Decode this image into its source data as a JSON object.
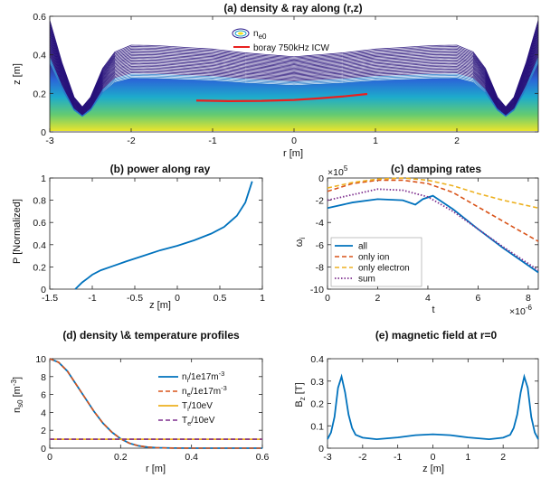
{
  "colors": {
    "blue": "#0072BD",
    "orange": "#D95319",
    "yellow": "#EDB120",
    "purple": "#7E2F8E",
    "ray": "#E8201F",
    "contour_low": "#27117a",
    "contour_high": "#f4ea20"
  },
  "chart_data": [
    {
      "type": "contour",
      "title": "(a) density & ray along (r,z)",
      "xlabel": "r [m]",
      "ylabel": "z [m]",
      "xlim": [
        -3,
        3
      ],
      "ylim": [
        0,
        0.6
      ],
      "xticks": [
        -3,
        -2,
        -1,
        0,
        1,
        2
      ],
      "yticks": [
        0,
        0.2,
        0.4,
        0.6
      ],
      "legend": [
        "n_e0",
        "boray 750kHz ICW"
      ],
      "legend_placement": "top-center",
      "envelope": {
        "x": [
          -3,
          -2.85,
          -2.7,
          -2.6,
          -2.5,
          -2.35,
          -2.2,
          -2,
          -1.7,
          -1.4,
          -1,
          -0.6,
          0,
          0.6,
          1,
          1.4,
          1.7,
          2,
          2.2,
          2.35,
          2.5,
          2.6,
          2.7,
          2.85,
          3
        ],
        "z": [
          0.58,
          0.36,
          0.18,
          0.13,
          0.18,
          0.33,
          0.415,
          0.45,
          0.448,
          0.44,
          0.43,
          0.41,
          0.39,
          0.41,
          0.43,
          0.44,
          0.448,
          0.45,
          0.415,
          0.33,
          0.18,
          0.13,
          0.18,
          0.36,
          0.58
        ]
      },
      "ray": {
        "r": [
          -1.2,
          -0.8,
          -0.4,
          0,
          0.3,
          0.6,
          0.9
        ],
        "z": [
          0.163,
          0.16,
          0.161,
          0.166,
          0.174,
          0.184,
          0.197
        ]
      }
    },
    {
      "type": "line",
      "title": "(b) power along ray",
      "xlabel": "z [m]",
      "ylabel": "P [Normalized]",
      "xlim": [
        -1.5,
        1
      ],
      "ylim": [
        0,
        1
      ],
      "xticks": [
        -1.5,
        -1,
        -0.5,
        0,
        0.5,
        1
      ],
      "yticks": [
        0,
        0.2,
        0.4,
        0.6,
        0.8,
        1
      ],
      "series": [
        {
          "x": [
            -1.2,
            -1.12,
            -1.05,
            -1.0,
            -0.9,
            -0.75,
            -0.6,
            -0.4,
            -0.2,
            0,
            0.2,
            0.4,
            0.55,
            0.7,
            0.8,
            0.88
          ],
          "y": [
            0,
            0.06,
            0.1,
            0.13,
            0.17,
            0.21,
            0.25,
            0.3,
            0.35,
            0.39,
            0.44,
            0.5,
            0.56,
            0.66,
            0.78,
            0.97
          ]
        }
      ]
    },
    {
      "type": "line",
      "title": "(c) damping rates",
      "xlabel": "t",
      "ylabel": "ω_i",
      "y_multiplier": "×10^5",
      "x_multiplier": "×10^-6",
      "xlim": [
        0,
        8.4
      ],
      "ylim": [
        -10,
        0
      ],
      "xticks": [
        0,
        2,
        4,
        6,
        8
      ],
      "yticks": [
        0,
        -2,
        -4,
        -6,
        -8,
        -10
      ],
      "legend_placement": "bottom-left",
      "series": [
        {
          "name": "all",
          "x": [
            0,
            1,
            2,
            3,
            3.5,
            3.8,
            4.2,
            5,
            6,
            7,
            8.4
          ],
          "y": [
            -2.7,
            -2.2,
            -1.9,
            -2.0,
            -2.4,
            -1.9,
            -1.6,
            -2.8,
            -4.6,
            -6.3,
            -8.5
          ]
        },
        {
          "name": "only ion",
          "x": [
            0,
            1,
            2,
            3,
            4,
            5,
            6,
            7,
            8.4
          ],
          "y": [
            -1.2,
            -0.5,
            -0.2,
            -0.2,
            -0.5,
            -1.3,
            -2.6,
            -3.9,
            -5.7
          ]
        },
        {
          "name": "only electron",
          "x": [
            0,
            1,
            2,
            3,
            4,
            5,
            6,
            7,
            8.4
          ],
          "y": [
            -0.9,
            -0.4,
            -0.1,
            0,
            -0.2,
            -0.7,
            -1.4,
            -2.0,
            -2.7
          ]
        },
        {
          "name": "sum",
          "x": [
            0,
            1,
            2,
            3,
            4,
            5,
            6,
            7,
            8.4
          ],
          "y": [
            -2.0,
            -1.5,
            -1.0,
            -1.1,
            -1.7,
            -3.0,
            -4.6,
            -6.2,
            -8.3
          ]
        }
      ]
    },
    {
      "type": "line",
      "title": "(d) density \\& temperature profiles",
      "xlabel": "r [m]",
      "ylabel": "n_s0 [m^-3]",
      "xlim": [
        0,
        0.6
      ],
      "ylim": [
        0,
        10
      ],
      "xticks": [
        0,
        0.2,
        0.4,
        0.6
      ],
      "yticks": [
        0,
        2,
        4,
        6,
        8,
        10
      ],
      "legend_placement": "right",
      "series": [
        {
          "name": "n_i/1e17m^-3",
          "x": [
            0,
            0.025,
            0.05,
            0.075,
            0.1,
            0.125,
            0.15,
            0.175,
            0.2,
            0.225,
            0.25,
            0.275,
            0.3,
            0.35,
            0.4,
            0.45,
            0.5,
            0.55,
            0.6
          ],
          "y": [
            10,
            9.6,
            8.6,
            7.1,
            5.6,
            4.1,
            2.8,
            1.8,
            1.05,
            0.55,
            0.27,
            0.12,
            0.05,
            0.01,
            0,
            0,
            0,
            0,
            0
          ]
        },
        {
          "name": "n_e/1e17m^-3",
          "x": [
            0,
            0.025,
            0.05,
            0.075,
            0.1,
            0.125,
            0.15,
            0.175,
            0.2,
            0.225,
            0.25,
            0.275,
            0.3,
            0.35,
            0.4,
            0.45,
            0.5,
            0.55,
            0.6
          ],
          "y": [
            10,
            9.6,
            8.6,
            7.1,
            5.6,
            4.1,
            2.8,
            1.8,
            1.05,
            0.55,
            0.27,
            0.12,
            0.05,
            0.01,
            0,
            0,
            0,
            0,
            0
          ]
        },
        {
          "name": "T_i/10eV",
          "x": [
            0,
            0.6
          ],
          "y": [
            1,
            1
          ]
        },
        {
          "name": "T_e/10eV",
          "x": [
            0,
            0.6
          ],
          "y": [
            1,
            1
          ]
        }
      ]
    },
    {
      "type": "line",
      "title": "(e) magnetic field at r=0",
      "xlabel": "z [m]",
      "ylabel": "B_z [T]",
      "xlim": [
        -3,
        3
      ],
      "ylim": [
        0,
        0.4
      ],
      "xticks": [
        -3,
        -2,
        -1,
        0,
        1,
        2
      ],
      "yticks": [
        0,
        0.1,
        0.2,
        0.3,
        0.4
      ],
      "series": [
        {
          "x": [
            -3,
            -2.9,
            -2.8,
            -2.7,
            -2.6,
            -2.5,
            -2.4,
            -2.3,
            -2.2,
            -2.0,
            -1.6,
            -1.0,
            -0.5,
            0,
            0.5,
            1.0,
            1.6,
            2.0,
            2.2,
            2.3,
            2.4,
            2.5,
            2.6,
            2.7,
            2.8,
            2.9,
            3
          ],
          "y": [
            0.04,
            0.07,
            0.14,
            0.27,
            0.32,
            0.25,
            0.15,
            0.09,
            0.06,
            0.047,
            0.04,
            0.048,
            0.058,
            0.062,
            0.058,
            0.048,
            0.04,
            0.047,
            0.06,
            0.09,
            0.15,
            0.25,
            0.32,
            0.27,
            0.14,
            0.07,
            0.04
          ]
        }
      ]
    }
  ]
}
